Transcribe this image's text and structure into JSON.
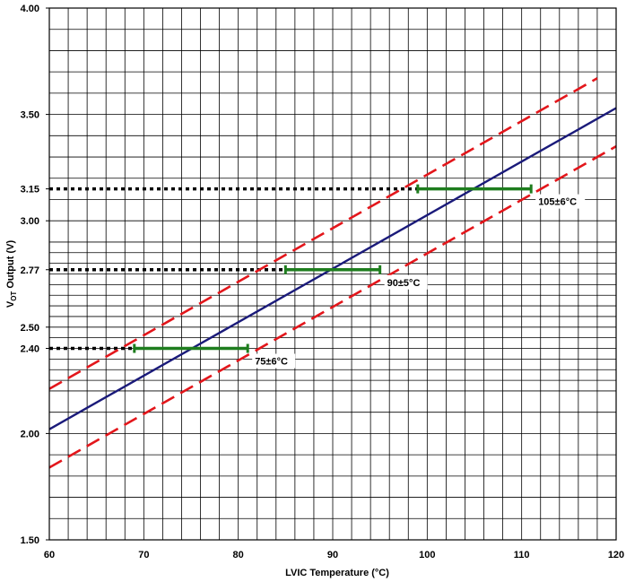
{
  "chart_data": {
    "type": "line",
    "title": "",
    "xlabel": "LVIC Temperature (°C)",
    "ylabel": {
      "prefix": "V",
      "sub": "OT",
      "suffix": " Output (V)"
    },
    "xlim": [
      60,
      120
    ],
    "ylim": [
      1.5,
      4.0
    ],
    "grid": true,
    "x_ticks": [
      60,
      70,
      80,
      90,
      100,
      110,
      120
    ],
    "x_tick_labels": [
      "60",
      "70",
      "80",
      "90",
      "100",
      "110",
      "120"
    ],
    "y_ticks": [
      1.5,
      2.0,
      2.4,
      2.5,
      2.77,
      3.0,
      3.15,
      3.5,
      4.0
    ],
    "y_tick_labels": [
      "1.50",
      "2.00",
      "2.40",
      "2.50",
      "2.77",
      "3.00",
      "3.15",
      "3.50",
      "4.00"
    ],
    "series": [
      {
        "style": "solid",
        "color": "#1a1a7a",
        "x": [
          60,
          120
        ],
        "y": [
          2.02,
          3.53
        ]
      },
      {
        "style": "dashed",
        "color": "#e3161b",
        "x": [
          60,
          118
        ],
        "y": [
          2.21,
          3.67
        ]
      },
      {
        "style": "dashed",
        "color": "#e3161b",
        "x": [
          60,
          120
        ],
        "y": [
          1.84,
          3.35
        ]
      }
    ],
    "tolerance_bars": [
      {
        "label": "75±6°C",
        "y": 2.4,
        "x_min": 69,
        "x_max": 81,
        "color": "#1e7d1e"
      },
      {
        "label": "90±5°C",
        "y": 2.77,
        "x_min": 85,
        "x_max": 95,
        "color": "#1e7d1e"
      },
      {
        "label": "105±6°C",
        "y": 3.15,
        "x_min": 99,
        "x_max": 111,
        "color": "#1e7d1e"
      }
    ],
    "reference_lines": [
      {
        "y": 2.4,
        "x_end": 69,
        "color": "#000000",
        "style": "dotted"
      },
      {
        "y": 2.77,
        "x_end": 85,
        "color": "#000000",
        "style": "dotted"
      },
      {
        "y": 3.15,
        "x_end": 99,
        "color": "#000000",
        "style": "dotted"
      }
    ]
  }
}
